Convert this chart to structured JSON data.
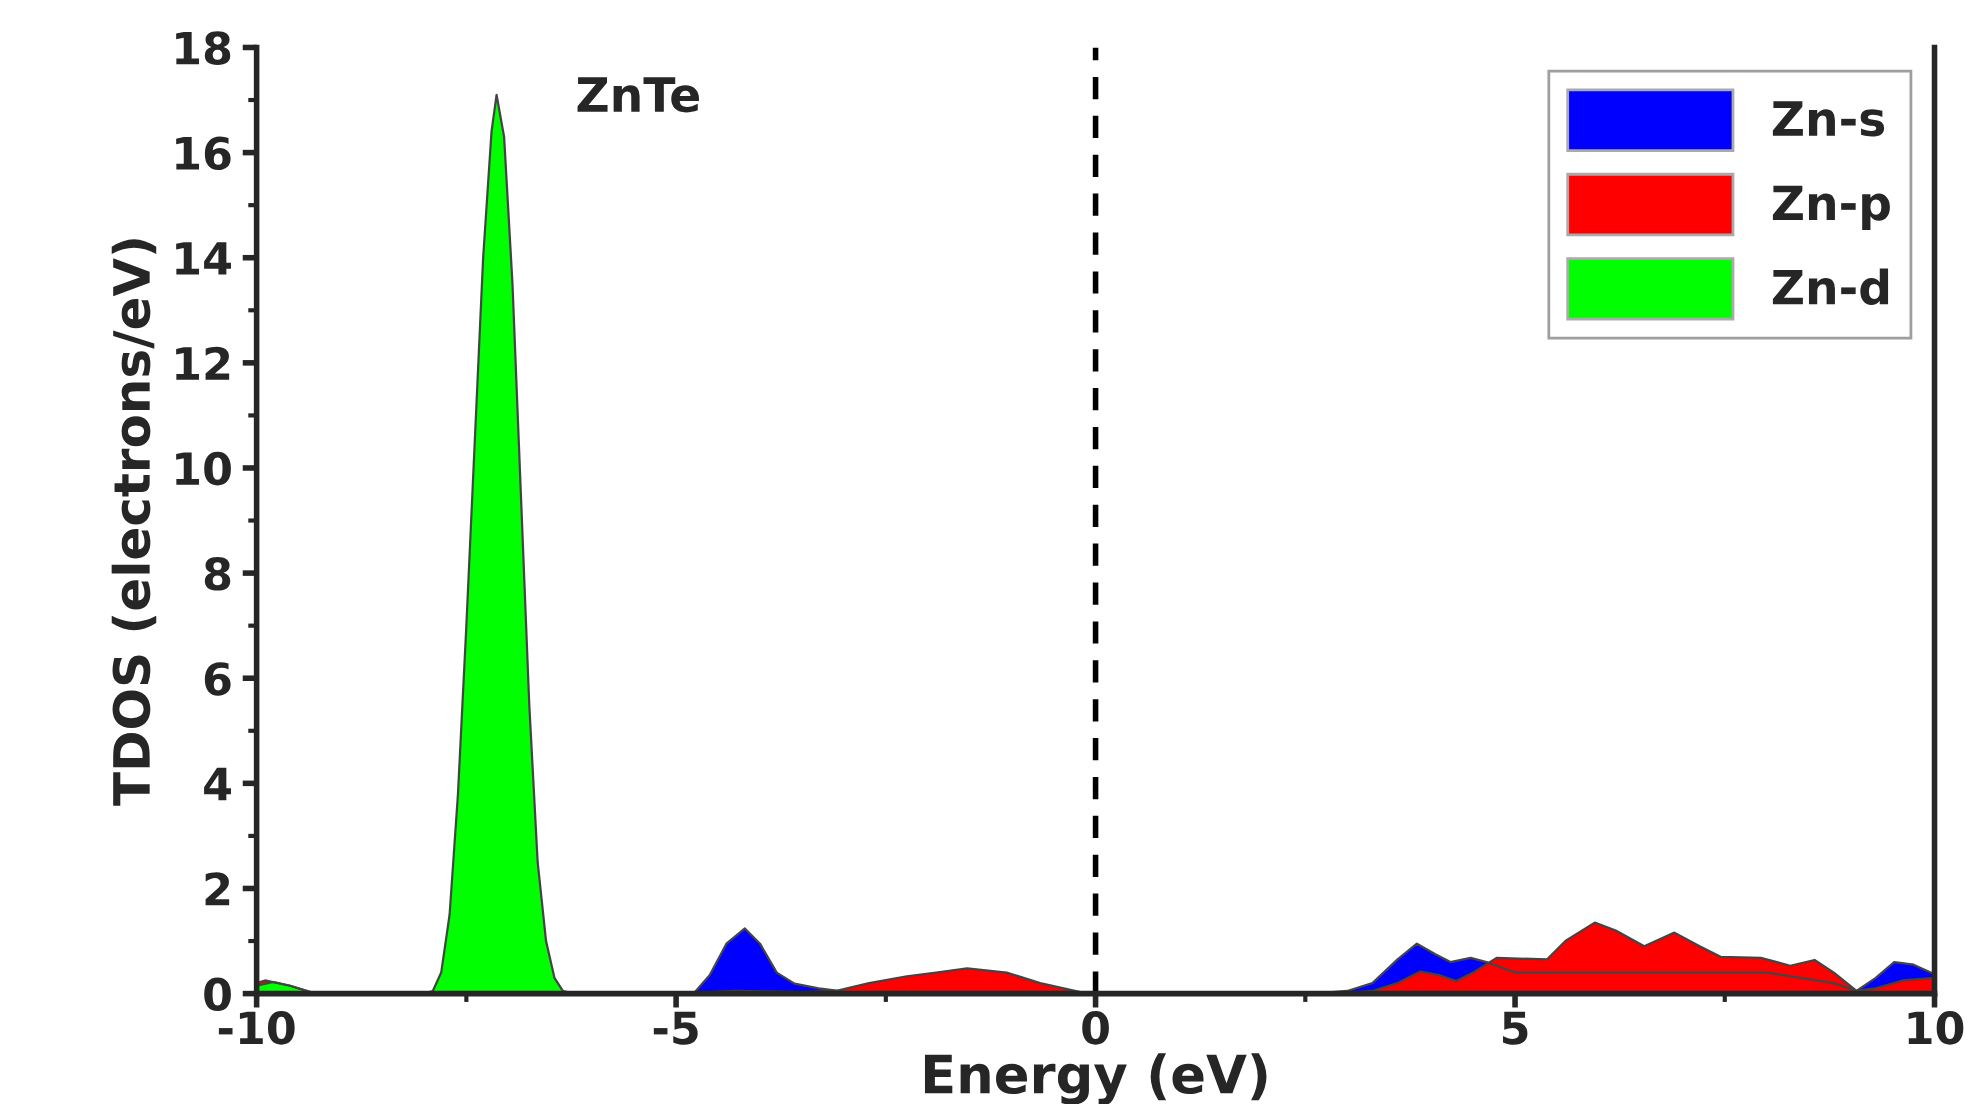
{
  "chart_data": {
    "type": "area",
    "xlabel": "Energy (eV)",
    "ylabel": "TDOS (electrons/eV)",
    "annotations": [
      "ZnTe"
    ],
    "series": [
      {
        "name": "Zn-s",
        "color": "#0000ff",
        "x": [
          -10,
          -4.9,
          -4.78,
          -4.6,
          -4.4,
          -4.18,
          -4.0,
          -3.8,
          -3.59,
          -3.3,
          -3.0,
          -2.8,
          2.6,
          3.0,
          3.3,
          3.6,
          3.83,
          4.05,
          4.23,
          4.47,
          4.66,
          5.0,
          6.0,
          7.0,
          8.0,
          8.8,
          9.07,
          9.3,
          9.52,
          9.75,
          10
        ],
        "values": [
          0,
          0,
          0.02,
          0.35,
          0.95,
          1.24,
          0.95,
          0.4,
          0.19,
          0.1,
          0.04,
          0,
          0,
          0.05,
          0.2,
          0.65,
          0.95,
          0.75,
          0.6,
          0.68,
          0.6,
          0.4,
          0.4,
          0.4,
          0.4,
          0.2,
          0.05,
          0.3,
          0.6,
          0.55,
          0.37
        ]
      },
      {
        "name": "Zn-p",
        "color": "#ff0000",
        "x": [
          -10,
          -9.9,
          -9.6,
          -9.3,
          -5.0,
          -4.3,
          -3.5,
          -3.1,
          -2.7,
          -2.25,
          -1.9,
          -1.53,
          -1.06,
          -0.66,
          -0.3,
          -0.1,
          2.9,
          3.3,
          3.6,
          3.87,
          4.1,
          4.3,
          4.5,
          4.78,
          5.38,
          5.6,
          5.95,
          6.2,
          6.54,
          6.9,
          7.2,
          7.45,
          7.93,
          8.28,
          8.57,
          8.8,
          9.07,
          9.3,
          9.62,
          10
        ],
        "values": [
          0.2,
          0.25,
          0.15,
          0,
          0,
          0.05,
          0.03,
          0.05,
          0.2,
          0.33,
          0.4,
          0.48,
          0.4,
          0.2,
          0.07,
          0,
          0,
          0.05,
          0.2,
          0.42,
          0.35,
          0.24,
          0.4,
          0.68,
          0.65,
          1.0,
          1.35,
          1.2,
          0.9,
          1.16,
          0.9,
          0.7,
          0.68,
          0.53,
          0.64,
          0.4,
          0.05,
          0.1,
          0.25,
          0.3
        ]
      },
      {
        "name": "Zn-d",
        "color": "#00ff00",
        "x": [
          -10,
          -9.8,
          -9.6,
          -9.3,
          -8.0,
          -7.9,
          -7.8,
          -7.7,
          -7.6,
          -7.5,
          -7.4,
          -7.3,
          -7.2,
          -7.14,
          -7.05,
          -6.95,
          -6.85,
          -6.75,
          -6.65,
          -6.55,
          -6.45,
          -6.35,
          -6.2,
          10
        ],
        "values": [
          0.15,
          0.22,
          0.15,
          0,
          0,
          0.05,
          0.4,
          1.5,
          3.8,
          7.0,
          10.5,
          14,
          16.4,
          17.1,
          16.3,
          13.5,
          9.5,
          5.5,
          2.5,
          1.0,
          0.3,
          0.05,
          0,
          0
        ]
      }
    ],
    "xlim": [
      -10,
      10
    ],
    "xticks": [
      -10,
      -5,
      0,
      5,
      10
    ],
    "ylim": [
      0,
      18
    ],
    "yticks": [
      0,
      2,
      4,
      6,
      8,
      10,
      12,
      14,
      16,
      18
    ],
    "ref_lines": [
      {
        "axis": "x",
        "value": 0,
        "color": "#000000",
        "line_style": "dashed"
      }
    ],
    "legend": "top right",
    "grid": false
  }
}
